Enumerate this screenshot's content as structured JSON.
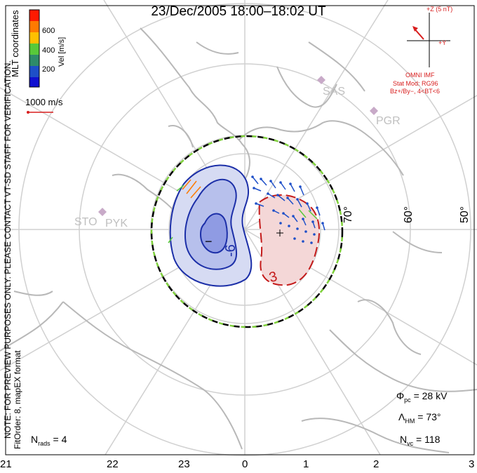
{
  "title": "23/Dec/2005  18:00–18:02  UT",
  "coordinates_label": "MLT coordinates",
  "note": "NOTE: FOR PREVIEW PURPOSES ONLY. PLEASE CONTACT VT-SD STAFF FOR VERIFICATION.",
  "fit_info": "FitOrder: 8,  mapEX format",
  "velocity_scale": {
    "ticks": [
      "600",
      "400",
      "200"
    ],
    "label": "Vel [m/s]",
    "colors": [
      "#ff1a00",
      "#ff7a00",
      "#ffc000",
      "#58c93a",
      "#2e8b6a",
      "#1e4fc8",
      "#1010d0"
    ]
  },
  "ref_vector": "1000 m/s",
  "imf": {
    "z_label": "+Z (5 nT)",
    "y_label": "+Y",
    "source": "OMNI IMF",
    "model": "Stat Mod: RG96",
    "conditions": "Bz+/By−, 4<BT<6"
  },
  "latitude_labels": [
    "70°",
    "60°",
    "50°"
  ],
  "mlt_labels": [
    "21",
    "22",
    "23",
    "0",
    "1",
    "2",
    "3"
  ],
  "stations": [
    "SAS",
    "PGR",
    "STO",
    "PYK"
  ],
  "potential_labels": {
    "negative": "−",
    "positive": "+",
    "neg_contour": "-6",
    "pos_contour": "3"
  },
  "stats": {
    "phi_pc": "= 28 kV",
    "lambda_hm": "= 73°",
    "n_vc": "= 118",
    "n_rads": "= 4"
  },
  "colors": {
    "negative_cell": "#1c2fa8",
    "positive_cell": "#c41a1a",
    "grid": "#cfcfcf",
    "coastline": "#b8b8b8",
    "boundary_green": "#7fd13b"
  }
}
